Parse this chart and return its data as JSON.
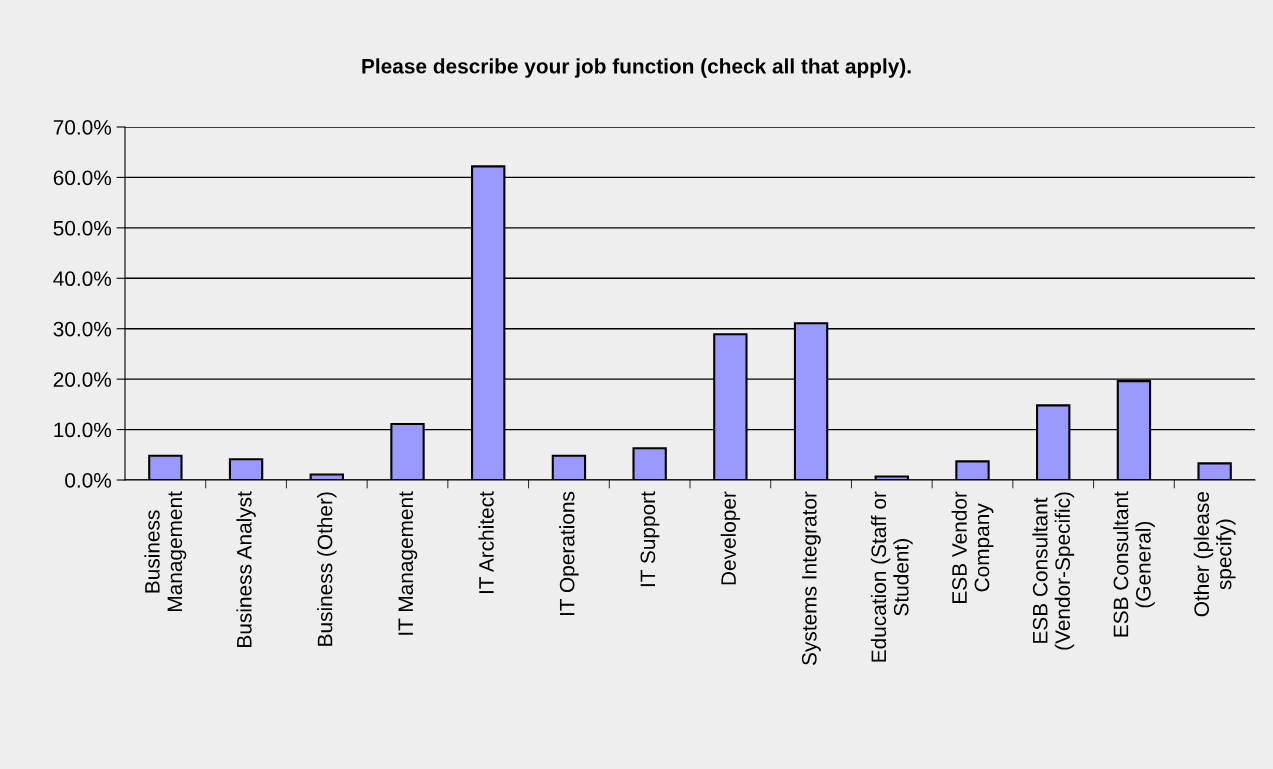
{
  "chart_data": {
    "type": "bar",
    "title": "Please describe your job function (check all that apply).",
    "categories": [
      "Business\nManagement",
      "Business Analyst",
      "Business (Other)",
      "IT Management",
      "IT Architect",
      "IT Operations",
      "IT Support",
      "Developer",
      "Systems Integrator",
      "Education (Staff or\nStudent)",
      "ESB Vendor\nCompany",
      "ESB Consultant\n(Vendor-Specific)",
      "ESB Consultant\n(General)",
      "Other (please\nspecify)"
    ],
    "values": [
      4.8,
      4.1,
      1.1,
      11.1,
      62.2,
      4.8,
      6.3,
      28.9,
      31.1,
      0.7,
      3.7,
      14.8,
      19.6,
      3.3
    ],
    "color": "#9999ff",
    "ylim": [
      0,
      70
    ],
    "yticks": [
      {
        "value": 0,
        "label": "0.0%"
      },
      {
        "value": 10,
        "label": "10.0%"
      },
      {
        "value": 20,
        "label": "20.0%"
      },
      {
        "value": 30,
        "label": "30.0%"
      },
      {
        "value": 40,
        "label": "40.0%"
      },
      {
        "value": 50,
        "label": "50.0%"
      },
      {
        "value": 60,
        "label": "60.0%"
      },
      {
        "value": 70,
        "label": "70.0%"
      }
    ],
    "grid": "y",
    "legend": false
  }
}
